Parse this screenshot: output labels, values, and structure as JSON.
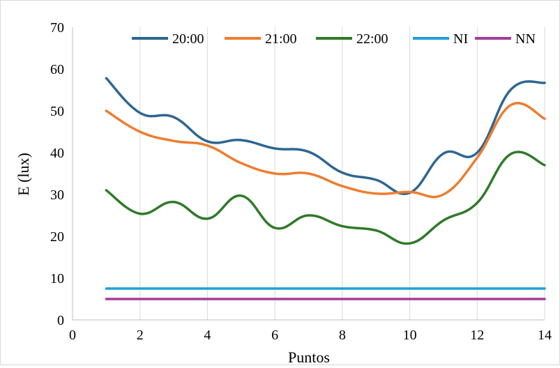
{
  "chart_data": {
    "type": "line",
    "xlabel": "Puntos",
    "ylabel": "E (lux)",
    "xlim": [
      0,
      14
    ],
    "ylim": [
      0,
      70
    ],
    "xticks": [
      0,
      2,
      4,
      6,
      8,
      10,
      12,
      14
    ],
    "yticks": [
      0,
      10,
      20,
      30,
      40,
      50,
      60,
      70
    ],
    "grid": "vertical",
    "legend": "top",
    "series": [
      {
        "name": "20:00",
        "color": "#2e6691",
        "x": [
          1,
          2,
          3,
          4,
          5,
          6,
          7,
          8,
          9,
          10,
          11,
          12,
          13,
          14
        ],
        "y": [
          57.8,
          49.5,
          48.5,
          42.7,
          43.0,
          41.0,
          40.2,
          35.2,
          33.5,
          30.4,
          39.8,
          40.0,
          55.1,
          56.7
        ]
      },
      {
        "name": "21:00",
        "color": "#ed7d31",
        "x": [
          1,
          2,
          3,
          4,
          5,
          6,
          7,
          8,
          9,
          10,
          11,
          12,
          13,
          14
        ],
        "y": [
          50.0,
          45.0,
          42.8,
          41.7,
          37.5,
          35.0,
          35.0,
          32.0,
          30.2,
          30.6,
          30.0,
          38.8,
          51.4,
          48.1
        ]
      },
      {
        "name": "22:00",
        "color": "#2f7a28",
        "x": [
          1,
          2,
          3,
          4,
          5,
          6,
          7,
          8,
          9,
          10,
          11,
          12,
          13,
          14
        ],
        "y": [
          31.0,
          25.4,
          28.2,
          24.2,
          29.7,
          22.0,
          25.0,
          22.4,
          21.4,
          18.3,
          23.8,
          28.0,
          39.7,
          37.0
        ]
      },
      {
        "name": "NI",
        "color": "#1f9fdc",
        "x": [
          1,
          14
        ],
        "y": [
          7.5,
          7.5
        ]
      },
      {
        "name": "NN",
        "color": "#a23f97",
        "x": [
          1,
          14
        ],
        "y": [
          5.0,
          5.0
        ]
      }
    ]
  }
}
